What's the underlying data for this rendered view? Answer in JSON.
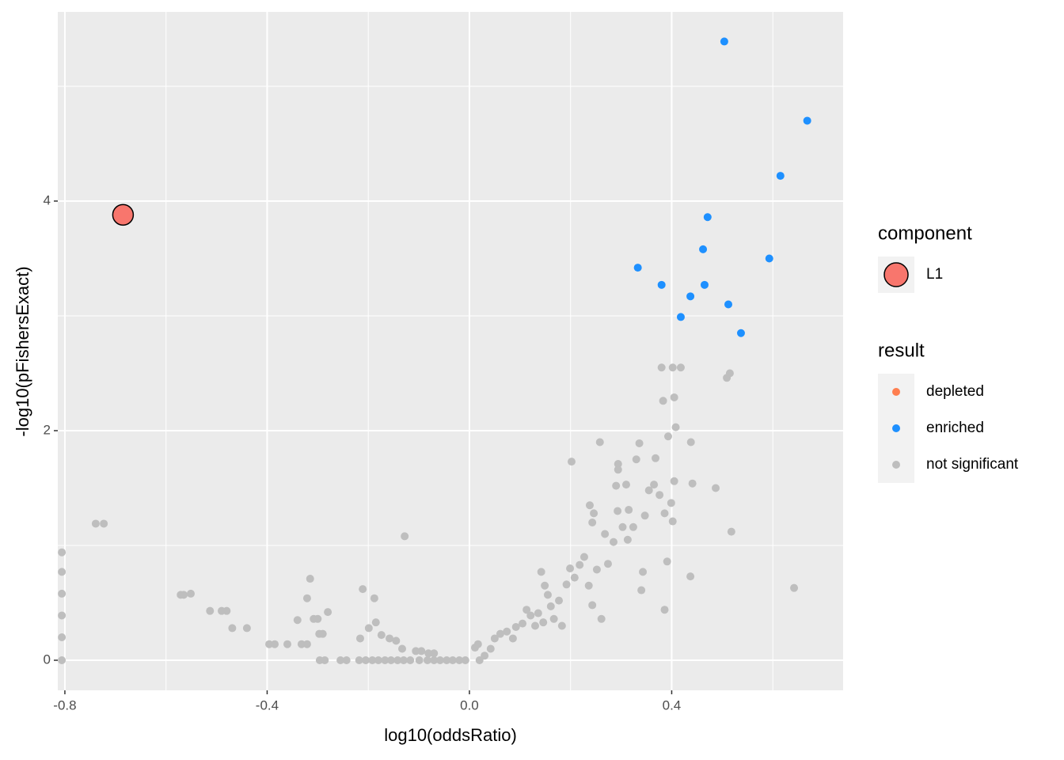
{
  "chart_data": {
    "type": "scatter",
    "x_label": "log10(oddsRatio)",
    "y_label": "-log10(pFishersExact)",
    "xlim": [
      -0.814,
      0.739
    ],
    "ylim": [
      -0.262,
      5.648
    ],
    "xticks": [
      -0.8,
      -0.4,
      {
        "value": 0,
        "label": "0.0"
      },
      0.4
    ],
    "yticks": [
      0,
      2,
      4
    ],
    "grid": true,
    "background": "#EBEBEB",
    "legends": [
      {
        "title": "component"
      },
      {
        "title": "result"
      }
    ],
    "series": [
      {
        "name": "L1",
        "legend": 0,
        "color": "#F8766D",
        "outline": "#000000",
        "highlight": true,
        "x": [
          -0.685
        ],
        "values": [
          3.88
        ]
      },
      {
        "name": "depleted",
        "legend": 1,
        "color": "#FF7F50",
        "x": [],
        "values": []
      },
      {
        "name": "enriched",
        "legend": 1,
        "color": "#1E90FF",
        "x": [
          0.504,
          0.668,
          0.615,
          0.471,
          0.333,
          0.462,
          0.593,
          0.38,
          0.465,
          0.437,
          0.512,
          0.418,
          0.537
        ],
        "values": [
          5.39,
          4.7,
          4.22,
          3.86,
          3.42,
          3.58,
          3.5,
          3.27,
          3.27,
          3.17,
          3.1,
          2.99,
          2.85
        ]
      },
      {
        "name": "not significant",
        "legend": 1,
        "color": "#BEBEBE",
        "x": [
          -0.806,
          -0.806,
          -0.806,
          -0.806,
          -0.806,
          -0.806,
          -0.739,
          -0.723,
          -0.571,
          -0.565,
          -0.551,
          -0.513,
          -0.49,
          -0.48,
          -0.469,
          -0.44,
          -0.396,
          -0.385,
          -0.36,
          -0.34,
          -0.332,
          -0.321,
          -0.321,
          -0.315,
          -0.308,
          -0.3,
          -0.297,
          -0.29,
          -0.28,
          -0.296,
          -0.286,
          -0.255,
          -0.243,
          -0.218,
          -0.205,
          -0.192,
          -0.18,
          -0.167,
          -0.155,
          -0.142,
          -0.13,
          -0.117,
          -0.211,
          -0.188,
          -0.216,
          -0.199,
          -0.185,
          -0.174,
          -0.158,
          -0.145,
          -0.133,
          -0.128,
          -0.106,
          -0.095,
          -0.081,
          -0.07,
          -0.099,
          -0.083,
          -0.07,
          -0.058,
          -0.045,
          -0.033,
          -0.02,
          -0.008,
          0.011,
          0.017,
          0.02,
          0.03,
          0.042,
          0.05,
          0.061,
          0.074,
          0.086,
          0.092,
          0.105,
          0.113,
          0.121,
          0.13,
          0.136,
          0.146,
          0.142,
          0.149,
          0.155,
          0.161,
          0.167,
          0.177,
          0.183,
          0.192,
          0.199,
          0.202,
          0.208,
          0.218,
          0.227,
          0.236,
          0.243,
          0.238,
          0.243,
          0.246,
          0.252,
          0.258,
          0.261,
          0.268,
          0.274,
          0.285,
          0.29,
          0.293,
          0.294,
          0.294,
          0.303,
          0.31,
          0.313,
          0.315,
          0.324,
          0.33,
          0.336,
          0.34,
          0.343,
          0.347,
          0.355,
          0.365,
          0.368,
          0.376,
          0.38,
          0.383,
          0.386,
          0.386,
          0.391,
          0.393,
          0.399,
          0.402,
          0.402,
          0.405,
          0.405,
          0.408,
          0.418,
          0.438,
          0.441,
          0.437,
          0.487,
          0.509,
          0.515,
          0.518,
          0.642
        ],
        "values": [
          0.94,
          0.77,
          0.58,
          0.39,
          0.2,
          0.0,
          1.19,
          1.19,
          0.57,
          0.57,
          0.58,
          0.43,
          0.43,
          0.43,
          0.28,
          0.28,
          0.14,
          0.14,
          0.14,
          0.35,
          0.14,
          0.14,
          0.54,
          0.71,
          0.36,
          0.36,
          0.23,
          0.23,
          0.42,
          0,
          0,
          0,
          0,
          0,
          0,
          0,
          0,
          0,
          0,
          0,
          0,
          0,
          0.62,
          0.54,
          0.19,
          0.28,
          0.33,
          0.22,
          0.19,
          0.17,
          0.1,
          1.08,
          0.08,
          0.08,
          0.06,
          0.06,
          0,
          0,
          0,
          0,
          0,
          0,
          0,
          0,
          0.11,
          0.14,
          0,
          0.04,
          0.1,
          0.19,
          0.23,
          0.25,
          0.19,
          0.29,
          0.32,
          0.44,
          0.39,
          0.3,
          0.41,
          0.33,
          0.77,
          0.65,
          0.57,
          0.47,
          0.36,
          0.52,
          0.3,
          0.66,
          0.8,
          1.73,
          0.72,
          0.83,
          0.9,
          0.65,
          0.48,
          1.35,
          1.2,
          1.28,
          0.79,
          1.9,
          0.36,
          1.1,
          0.84,
          1.03,
          1.52,
          1.3,
          1.66,
          1.71,
          1.16,
          1.53,
          1.05,
          1.31,
          1.16,
          1.75,
          1.89,
          0.61,
          0.77,
          1.26,
          1.48,
          1.53,
          1.76,
          1.44,
          2.55,
          2.26,
          1.28,
          0.44,
          0.86,
          1.95,
          1.37,
          2.55,
          1.21,
          2.29,
          1.56,
          2.03,
          2.55,
          1.9,
          1.54,
          0.73,
          1.5,
          2.46,
          2.5,
          1.12,
          0.63
        ]
      }
    ]
  }
}
